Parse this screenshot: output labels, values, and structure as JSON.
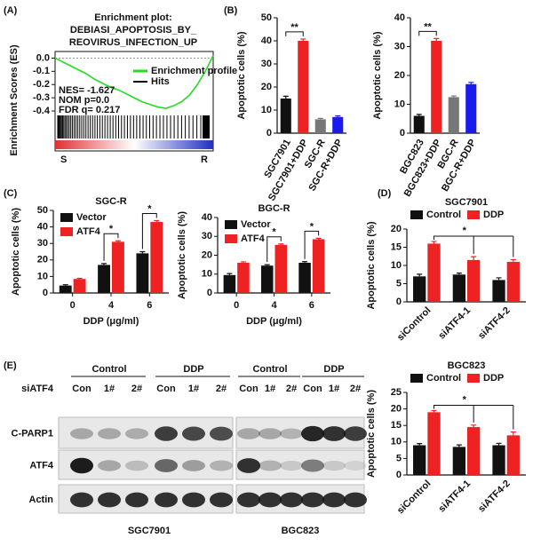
{
  "panels": [
    "(A)",
    "(B)",
    "(C)",
    "(D)",
    "(E)"
  ],
  "chart_data": [
    {
      "type": "line",
      "title": [
        "Enrichment plot:",
        "DEBIASI_APOPTOSIS_BY_",
        "REOVIRUS_INFECTION_UP"
      ],
      "ylabel": "Enrichment Scores (ES)",
      "x": [
        0,
        5,
        10,
        15,
        20,
        25,
        30,
        35,
        40,
        45,
        50,
        55,
        60,
        65,
        70,
        75,
        80,
        85,
        90,
        95,
        100
      ],
      "series": [
        {
          "name": "Enrichment profile",
          "color": "#22dd22",
          "values": [
            0,
            -0.03,
            -0.06,
            -0.09,
            -0.12,
            -0.16,
            -0.19,
            -0.22,
            -0.24,
            -0.27,
            -0.3,
            -0.33,
            -0.35,
            -0.37,
            -0.38,
            -0.36,
            -0.33,
            -0.28,
            -0.2,
            -0.1,
            0.02
          ]
        }
      ],
      "hits": {
        "name": "Hits",
        "color": "#000000"
      },
      "stats": [
        "NES= -1.627",
        "NOM p=0.0",
        "FDR q= 0.217"
      ],
      "ends": [
        "S",
        "R"
      ],
      "xlim": [
        0,
        100
      ],
      "ylim": [
        -0.42,
        0.05
      ],
      "yticks": [
        {
          "value": 0,
          "label": "0.0"
        },
        {
          "value": -0.1,
          "label": "-0.1"
        },
        {
          "value": -0.2,
          "label": "-0.2"
        },
        {
          "value": -0.3,
          "label": "-0.3"
        },
        {
          "value": -0.4,
          "label": "-0.4"
        }
      ]
    },
    {
      "type": "bar",
      "ylabel": "Apoptotic cells (%)",
      "categories": [
        "SGC7901",
        "SGC7901+DDP",
        "SGC-R",
        "SGC-R+DDP"
      ],
      "values": [
        15,
        40,
        6,
        7
      ],
      "errors": [
        1,
        0.8,
        0.4,
        0.5
      ],
      "colors": [
        "#111111",
        "#ee2222",
        "#777777",
        "#1a1aee"
      ],
      "ylim": [
        0,
        50
      ],
      "yticks": [
        0,
        10,
        20,
        30,
        40,
        50
      ],
      "annotations": [
        "**"
      ]
    },
    {
      "type": "bar",
      "ylabel": "Apoptotic cells (%)",
      "categories": [
        "BGC823",
        "BGC823+DDP",
        "BGC-R",
        "BGC-R+DDP"
      ],
      "values": [
        6,
        32,
        12.5,
        17
      ],
      "errors": [
        0.5,
        0.8,
        0.4,
        0.6
      ],
      "colors": [
        "#111111",
        "#ee2222",
        "#777777",
        "#1a1aee"
      ],
      "ylim": [
        0,
        40
      ],
      "yticks": [
        0,
        10,
        20,
        30,
        40
      ],
      "annotations": [
        "**"
      ]
    },
    {
      "type": "bar",
      "title": "SGC-R",
      "ylabel": "Apoptotic cells (%)",
      "xlabel": "DDP (μg/ml)",
      "categories": [
        "0",
        "4",
        "6"
      ],
      "series": [
        {
          "name": "Vector",
          "color": "#111111",
          "values": [
            4.5,
            17,
            24
          ],
          "errors": [
            0.5,
            0.8,
            1
          ]
        },
        {
          "name": "ATF4",
          "color": "#ee2222",
          "values": [
            8.5,
            31,
            43
          ],
          "errors": [
            0.4,
            0.6,
            0.8
          ]
        }
      ],
      "ylim": [
        0,
        50
      ],
      "yticks": [
        0,
        10,
        20,
        30,
        40,
        50
      ],
      "legend": "upper left",
      "annotations": [
        "*",
        "*"
      ]
    },
    {
      "type": "bar",
      "title": "BGC-R",
      "ylabel": "Apoptotic cells (%)",
      "xlabel": "DDP (μg/ml)",
      "categories": [
        "0",
        "4",
        "6"
      ],
      "series": [
        {
          "name": "Vector",
          "color": "#111111",
          "values": [
            9.5,
            14.5,
            16
          ],
          "errors": [
            0.8,
            0.5,
            0.6
          ]
        },
        {
          "name": "ATF4",
          "color": "#ee2222",
          "values": [
            16,
            25.5,
            28.5
          ],
          "errors": [
            0.5,
            0.5,
            0.5
          ]
        }
      ],
      "ylim": [
        0,
        40
      ],
      "yticks": [
        0,
        10,
        20,
        30,
        40
      ],
      "legend": "upper left",
      "annotations": [
        "*",
        "*"
      ]
    },
    {
      "type": "bar",
      "title": "SGC7901",
      "ylabel": "Apoptotic cells (%)",
      "categories": [
        "siControl",
        "siATF4-1",
        "siATF4-2"
      ],
      "series": [
        {
          "name": "Control",
          "color": "#111111",
          "values": [
            7,
            7.5,
            6
          ],
          "errors": [
            0.6,
            0.4,
            0.6
          ]
        },
        {
          "name": "DDP",
          "color": "#ee2222",
          "values": [
            16,
            11.5,
            11
          ],
          "errors": [
            0.6,
            0.9,
            0.6
          ]
        }
      ],
      "ylim": [
        0,
        20
      ],
      "yticks": [
        0,
        5,
        10,
        15,
        20
      ],
      "legend": "top",
      "annotations": [
        "*"
      ]
    },
    {
      "type": "bar",
      "title": "BGC823",
      "ylabel": "Apoptotic cells (%)",
      "categories": [
        "siControl",
        "siATF4-1",
        "siATF4-2"
      ],
      "series": [
        {
          "name": "Control",
          "color": "#111111",
          "values": [
            9,
            8.5,
            9
          ],
          "errors": [
            0.5,
            0.6,
            0.6
          ]
        },
        {
          "name": "DDP",
          "color": "#ee2222",
          "values": [
            19,
            14.5,
            12
          ],
          "errors": [
            0.5,
            0.6,
            1
          ]
        }
      ],
      "ylim": [
        0,
        25
      ],
      "yticks": [
        0,
        5,
        10,
        15,
        20,
        25
      ],
      "legend": "top",
      "annotations": [
        "*"
      ]
    }
  ],
  "blot": {
    "label": "siATF4",
    "groups": [
      "Control",
      "DDP",
      "Control",
      "DDP"
    ],
    "lanes": [
      "Con",
      "1#",
      "2#",
      "Con",
      "1#",
      "2#",
      "Con",
      "1#",
      "2#",
      "Con",
      "1#",
      "2#"
    ],
    "rows": [
      "C-PARP1",
      "ATF4",
      "Actin"
    ],
    "cell_lines": [
      "SGC7901",
      "BGC823"
    ]
  }
}
